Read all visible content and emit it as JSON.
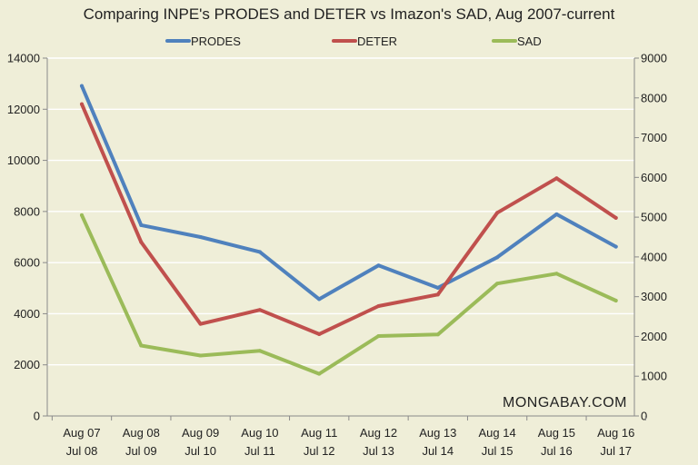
{
  "chart_data": {
    "type": "line",
    "title": "Comparing INPE's PRODES and DETER vs Imazon's SAD, Aug 2007-current",
    "categories": [
      [
        "Aug 07",
        "Jul 08"
      ],
      [
        "Aug 08",
        "Jul 09"
      ],
      [
        "Aug 09",
        "Jul 10"
      ],
      [
        "Aug 10",
        "Jul 11"
      ],
      [
        "Aug 11",
        "Jul 12"
      ],
      [
        "Aug 12",
        "Jul 13"
      ],
      [
        "Aug 13",
        "Jul 14"
      ],
      [
        "Aug 14",
        "Jul 15"
      ],
      [
        "Aug 15",
        "Jul 16"
      ],
      [
        "Aug 16",
        "Jul 17"
      ]
    ],
    "yleft": {
      "min": 0,
      "max": 14000,
      "ticks": [
        "0",
        "2000",
        "4000",
        "6000",
        "8000",
        "10000",
        "12000",
        "14000"
      ]
    },
    "yright": {
      "min": 0,
      "max": 9000,
      "ticks": [
        "0",
        "1000",
        "2000",
        "3000",
        "4000",
        "5000",
        "6000",
        "7000",
        "8000",
        "9000"
      ]
    },
    "series": [
      {
        "name": "PRODES",
        "axis": "left",
        "color": "#4f81bd",
        "values": [
          12911,
          7464,
          7000,
          6418,
          4571,
          5891,
          5012,
          6207,
          7893,
          6624
        ]
      },
      {
        "name": "DETER",
        "axis": "left",
        "color": "#c0504d",
        "values": [
          12200,
          6800,
          3600,
          4150,
          3200,
          4300,
          4750,
          7950,
          9300,
          7750
        ]
      },
      {
        "name": "SAD",
        "axis": "right",
        "color": "#9bbb59",
        "values": [
          5050,
          1770,
          1520,
          1640,
          1060,
          2010,
          2050,
          3330,
          3580,
          2900
        ]
      }
    ],
    "grid": true,
    "legend_position": "top",
    "watermark": "MONGABAY.COM"
  }
}
